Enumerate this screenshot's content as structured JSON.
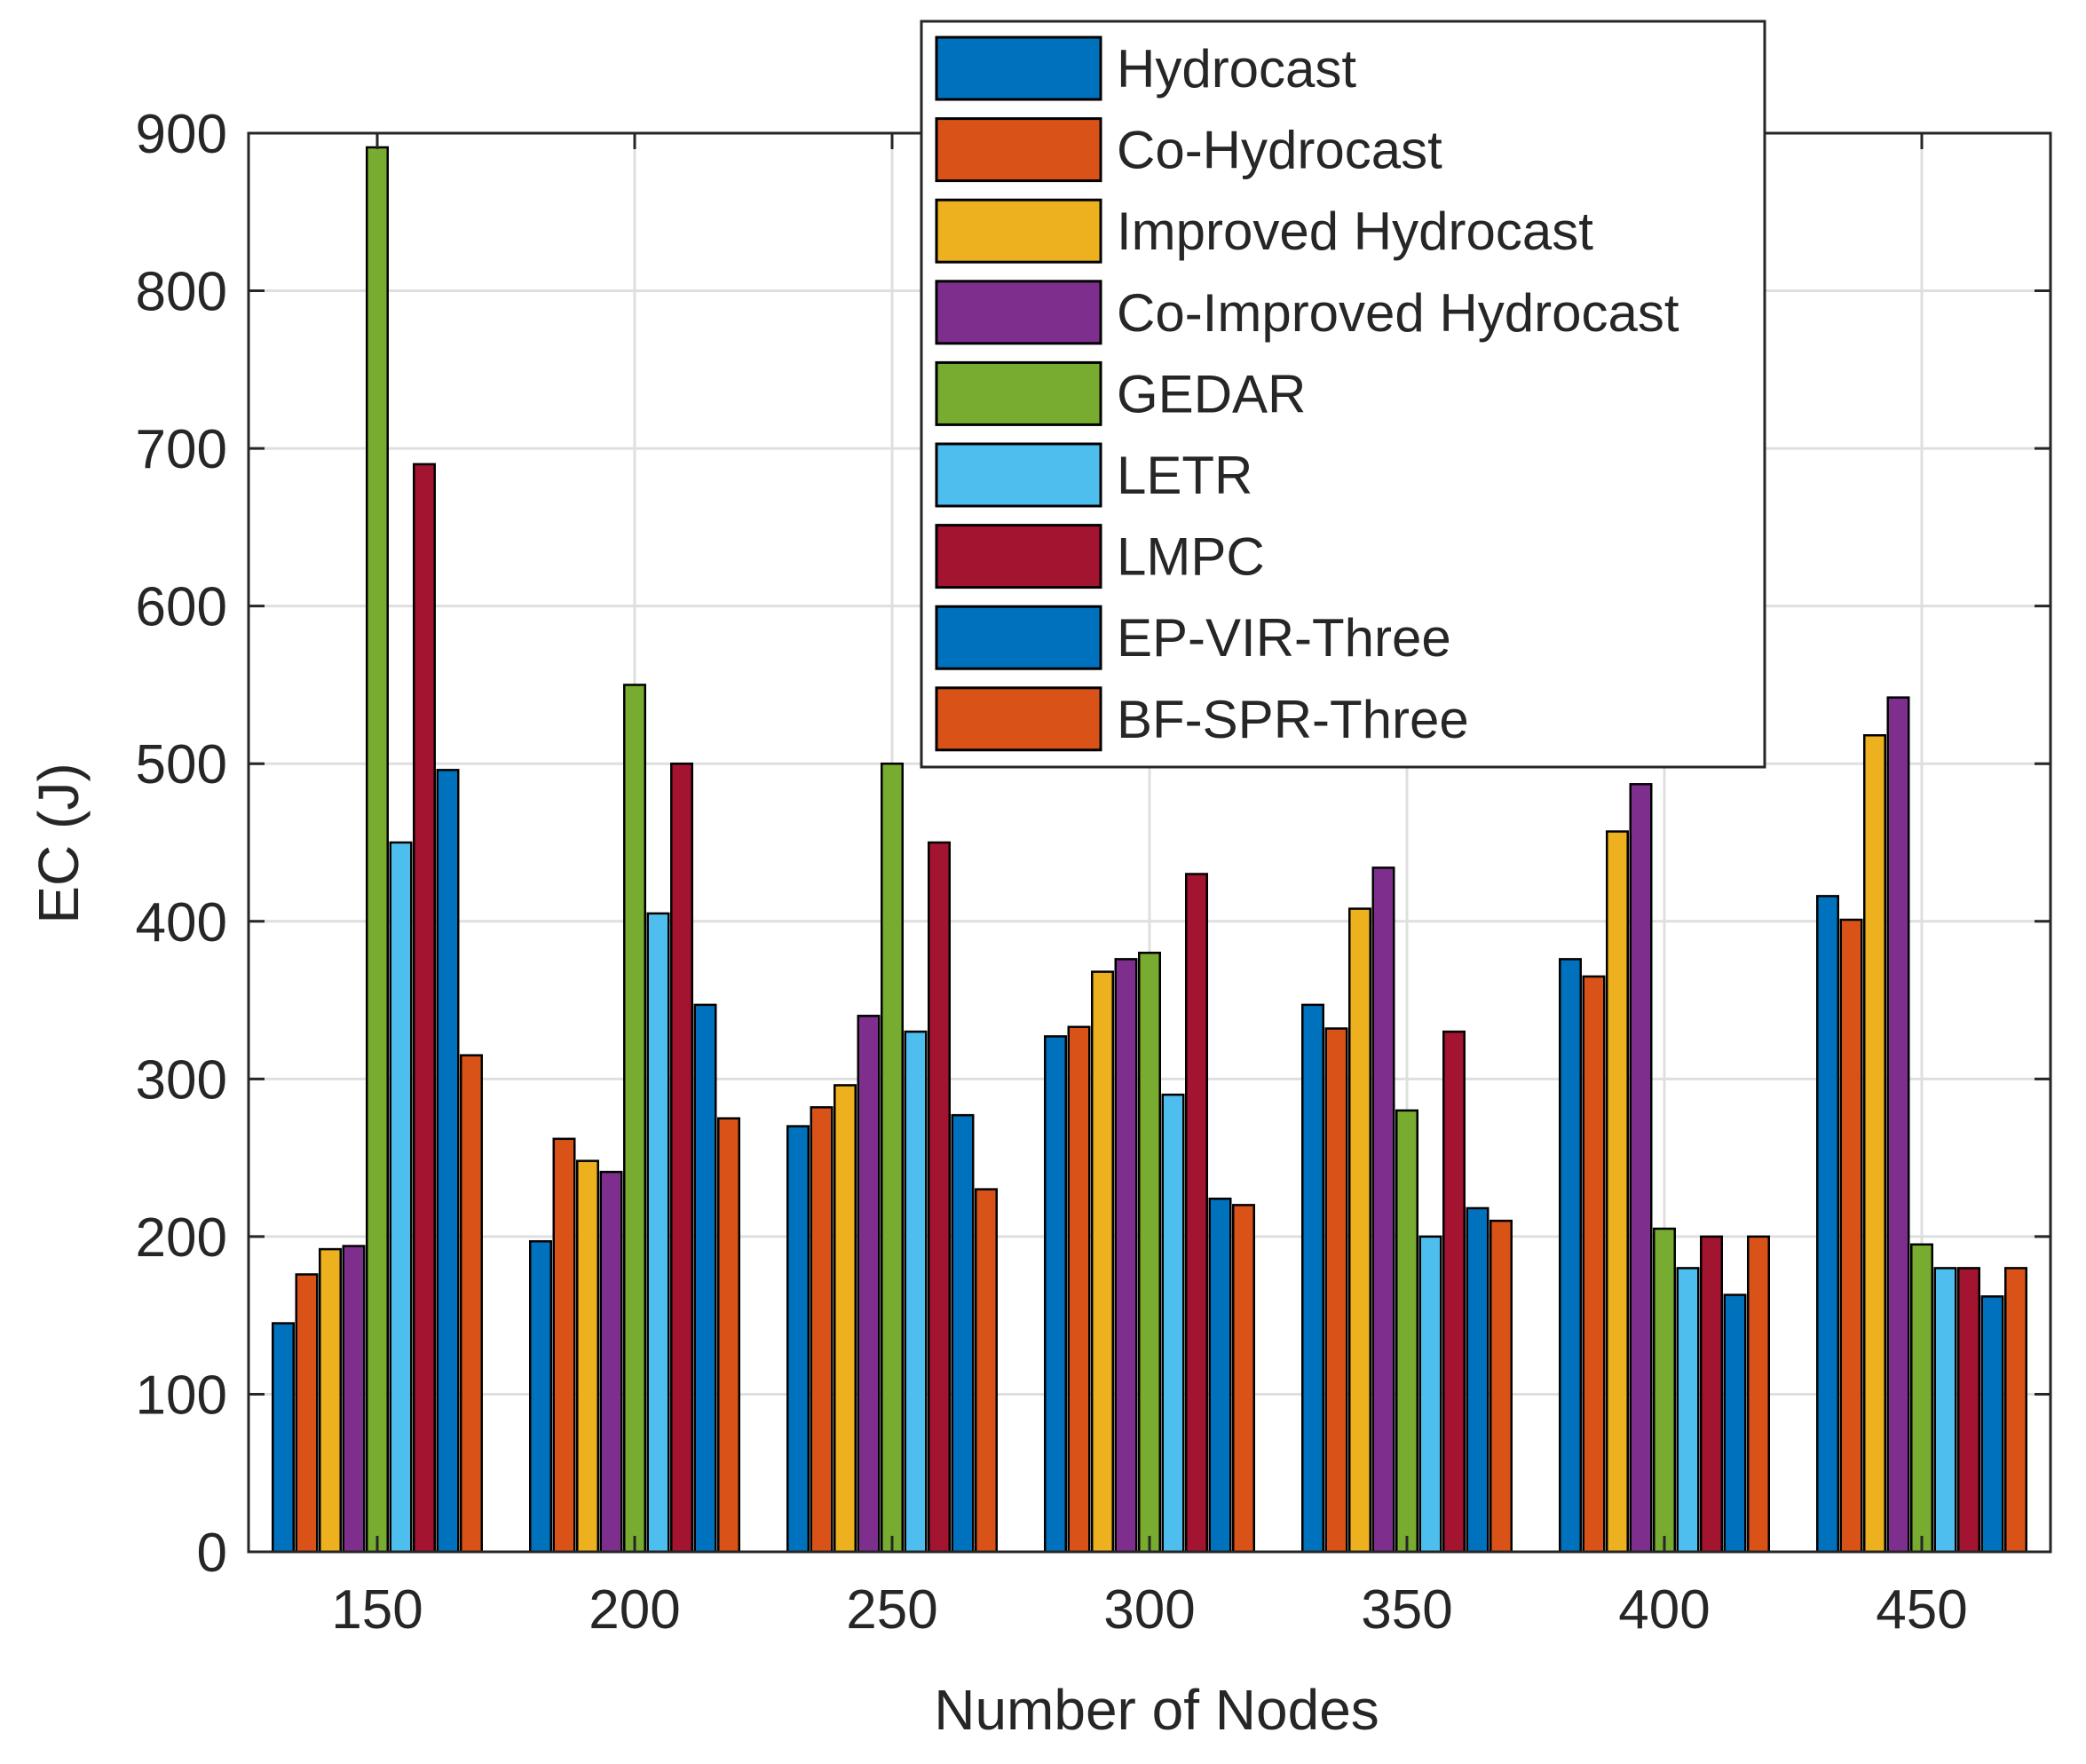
{
  "chart_data": {
    "type": "bar",
    "title": "",
    "xlabel": "Number of Nodes",
    "ylabel": "EC (J)",
    "categories": [
      "150",
      "200",
      "250",
      "300",
      "350",
      "400",
      "450"
    ],
    "ylim": [
      0,
      900
    ],
    "yticks": [
      0,
      100,
      200,
      300,
      400,
      500,
      600,
      700,
      800,
      900
    ],
    "grid": true,
    "legend_position": "top-right (inside, overlapping top edge)",
    "series": [
      {
        "name": "Hydrocast",
        "color": "#0072BD",
        "values": [
          145,
          197,
          270,
          327,
          347,
          376,
          416
        ]
      },
      {
        "name": "Co-Hydrocast",
        "color": "#D95319",
        "values": [
          176,
          262,
          282,
          333,
          332,
          365,
          401
        ]
      },
      {
        "name": "Improved Hydrocast",
        "color": "#EDB120",
        "values": [
          192,
          248,
          296,
          368,
          408,
          457,
          518
        ]
      },
      {
        "name": "Co-Improved Hydrocast",
        "color": "#7E2F8E",
        "values": [
          194,
          241,
          340,
          376,
          434,
          487,
          542
        ]
      },
      {
        "name": "GEDAR",
        "color": "#77AC30",
        "values": [
          891,
          550,
          500,
          380,
          280,
          205,
          195
        ]
      },
      {
        "name": "LETR",
        "color": "#4DBEEE",
        "values": [
          450,
          405,
          330,
          290,
          200,
          180,
          180
        ]
      },
      {
        "name": "LMPC",
        "color": "#A2142F",
        "values": [
          690,
          500,
          450,
          430,
          330,
          200,
          180
        ]
      },
      {
        "name": "EP-VIR-Three",
        "color": "#0072BD",
        "values": [
          496,
          347,
          277,
          224,
          218,
          163,
          162
        ]
      },
      {
        "name": "BF-SPR-Three",
        "color": "#D95319",
        "values": [
          315,
          275,
          230,
          220,
          210,
          200,
          180
        ]
      }
    ]
  }
}
